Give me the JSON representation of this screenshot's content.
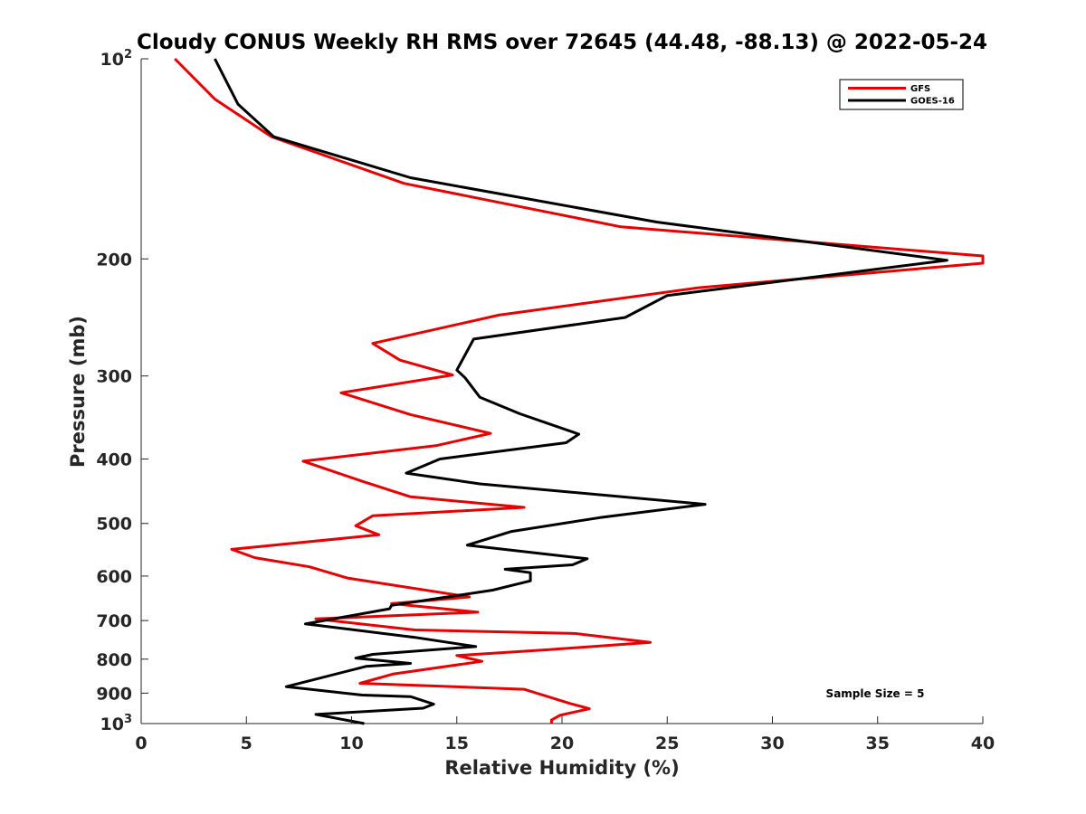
{
  "chart_data": {
    "type": "line",
    "title": "Cloudy CONUS Weekly RH RMS over 72645 (44.48, -88.13) @ 2022-05-24",
    "xlabel": "Relative Humidity (%)",
    "ylabel": "Pressure (mb)",
    "xlim": [
      0,
      40
    ],
    "ylim": [
      100,
      1000
    ],
    "y_scale": "log",
    "y_reversed": false,
    "grid": false,
    "legend_position": "top-right",
    "x_ticks": [
      "0",
      "5",
      "10",
      "15",
      "20",
      "25",
      "30",
      "35",
      "40"
    ],
    "y_ticks": [
      {
        "value": 100,
        "base": "10",
        "exp": "2"
      },
      {
        "value": 200,
        "label": "200"
      },
      {
        "value": 300,
        "label": "300"
      },
      {
        "value": 400,
        "label": "400"
      },
      {
        "value": 500,
        "label": "500"
      },
      {
        "value": 600,
        "label": "600"
      },
      {
        "value": 700,
        "label": "700"
      },
      {
        "value": 800,
        "label": "800"
      },
      {
        "value": 900,
        "label": "900"
      },
      {
        "value": 1000,
        "base": "10",
        "exp": "3"
      }
    ],
    "annotation": "Sample Size = 5",
    "series": [
      {
        "name": "GFS",
        "color": "#e60000",
        "points": [
          [
            1.6,
            100
          ],
          [
            3.5,
            115
          ],
          [
            6.2,
            131
          ],
          [
            12.5,
            154
          ],
          [
            22.8,
            179
          ],
          [
            40.0,
            198
          ],
          [
            40.0,
            203
          ],
          [
            26.5,
            221
          ],
          [
            17.0,
            243
          ],
          [
            11.0,
            268
          ],
          [
            12.3,
            284
          ],
          [
            14.8,
            299
          ],
          [
            9.5,
            318
          ],
          [
            12.8,
            343
          ],
          [
            16.6,
            366
          ],
          [
            14.0,
            382
          ],
          [
            7.7,
            403
          ],
          [
            10.5,
            432
          ],
          [
            12.8,
            456
          ],
          [
            18.2,
            473
          ],
          [
            11.0,
            487
          ],
          [
            10.2,
            504
          ],
          [
            11.3,
            520
          ],
          [
            4.3,
            547
          ],
          [
            5.4,
            563
          ],
          [
            8.0,
            581
          ],
          [
            9.8,
            604
          ],
          [
            15.6,
            645
          ],
          [
            11.9,
            660
          ],
          [
            16.0,
            680
          ],
          [
            8.3,
            696
          ],
          [
            13.0,
            723
          ],
          [
            20.6,
            732
          ],
          [
            24.2,
            755
          ],
          [
            19.4,
            774
          ],
          [
            15.0,
            790
          ],
          [
            16.2,
            806
          ],
          [
            12.0,
            842
          ],
          [
            10.4,
            870
          ],
          [
            18.2,
            888
          ],
          [
            20.4,
            933
          ],
          [
            21.3,
            950
          ],
          [
            19.9,
            972
          ],
          [
            19.5,
            988
          ],
          [
            19.5,
            1000
          ]
        ]
      },
      {
        "name": "GOES-16",
        "color": "#000000",
        "points": [
          [
            3.5,
            100
          ],
          [
            4.6,
            117
          ],
          [
            6.3,
            131
          ],
          [
            12.8,
            151
          ],
          [
            24.5,
            176
          ],
          [
            38.3,
            201
          ],
          [
            25.0,
            227
          ],
          [
            23.0,
            245
          ],
          [
            15.8,
            264
          ],
          [
            15.0,
            294
          ],
          [
            15.4,
            302
          ],
          [
            16.1,
            323
          ],
          [
            18.0,
            342
          ],
          [
            20.8,
            367
          ],
          [
            20.2,
            378
          ],
          [
            14.2,
            400
          ],
          [
            12.6,
            420
          ],
          [
            16.1,
            436
          ],
          [
            26.8,
            468
          ],
          [
            21.8,
            490
          ],
          [
            17.6,
            514
          ],
          [
            15.5,
            539
          ],
          [
            21.2,
            565
          ],
          [
            20.5,
            577
          ],
          [
            17.3,
            586
          ],
          [
            18.5,
            593
          ],
          [
            18.5,
            610
          ],
          [
            16.7,
            630
          ],
          [
            11.9,
            664
          ],
          [
            11.8,
            672
          ],
          [
            7.8,
            708
          ],
          [
            13.0,
            742
          ],
          [
            15.9,
            766
          ],
          [
            11.0,
            787
          ],
          [
            10.2,
            797
          ],
          [
            12.8,
            812
          ],
          [
            10.7,
            820
          ],
          [
            6.9,
            880
          ],
          [
            10.5,
            906
          ],
          [
            12.8,
            911
          ],
          [
            13.9,
            935
          ],
          [
            13.4,
            948
          ],
          [
            8.3,
            969
          ],
          [
            10.6,
            1000
          ]
        ]
      }
    ]
  }
}
